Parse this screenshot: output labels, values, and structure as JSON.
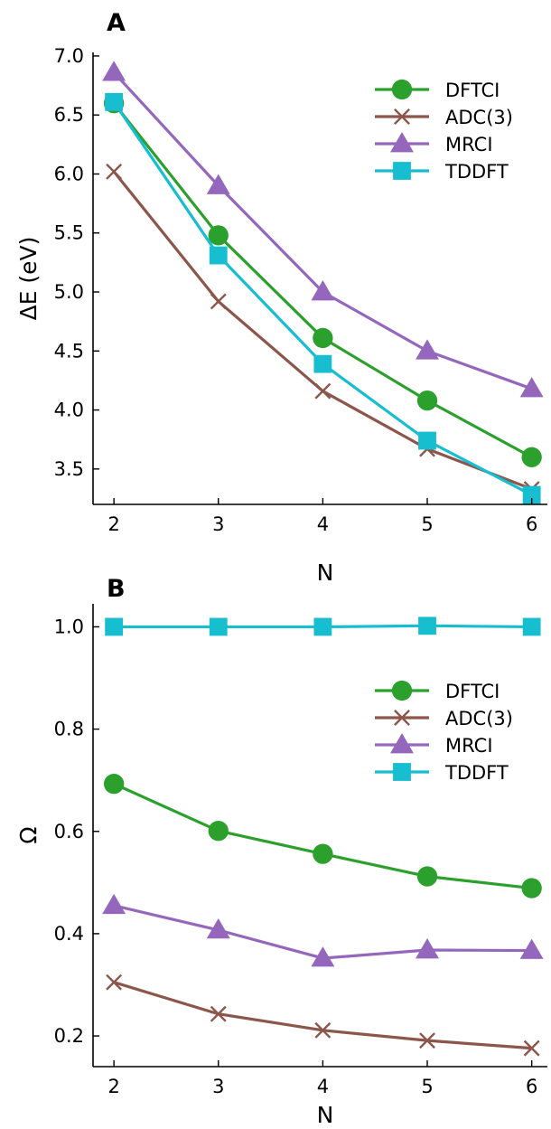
{
  "chart_data": [
    {
      "type": "line",
      "panel": "A",
      "xlabel": "N",
      "ylabel": "ΔE (eV)",
      "x": [
        2,
        3,
        4,
        5,
        6
      ],
      "xlim": [
        1.8,
        6.15
      ],
      "ylim": [
        3.2,
        7.03
      ],
      "xticks": [
        "2",
        "3",
        "4",
        "5",
        "6"
      ],
      "yticks": [
        "3.5",
        "4.0",
        "4.5",
        "5.0",
        "5.5",
        "6.0",
        "6.5",
        "7.0"
      ],
      "legend": "top-right",
      "grid": false,
      "series": [
        {
          "name": "DFTCI",
          "color": "#2ca02c",
          "marker": "circle",
          "values": [
            6.6,
            5.48,
            4.61,
            4.08,
            3.6
          ]
        },
        {
          "name": "ADC(3)",
          "color": "#8c564b",
          "marker": "x",
          "values": [
            6.02,
            4.92,
            4.16,
            3.67,
            3.33
          ]
        },
        {
          "name": "MRCI",
          "color": "#9467bd",
          "marker": "triangle",
          "values": [
            6.86,
            5.9,
            5.0,
            4.5,
            4.18
          ]
        },
        {
          "name": "TDDFT",
          "color": "#17becf",
          "marker": "square",
          "values": [
            6.61,
            5.31,
            4.39,
            3.74,
            3.28
          ]
        }
      ]
    },
    {
      "type": "line",
      "panel": "B",
      "xlabel": "N",
      "ylabel": "Ω",
      "x": [
        2,
        3,
        4,
        5,
        6
      ],
      "xlim": [
        1.8,
        6.15
      ],
      "ylim": [
        0.14,
        1.045
      ],
      "xticks": [
        "2",
        "3",
        "4",
        "5",
        "6"
      ],
      "yticks": [
        "0.2",
        "0.4",
        "0.6",
        "0.8",
        "1.0"
      ],
      "legend": "right",
      "grid": false,
      "series": [
        {
          "name": "DFTCI",
          "color": "#2ca02c",
          "marker": "circle",
          "values": [
            0.693,
            0.601,
            0.556,
            0.512,
            0.489
          ]
        },
        {
          "name": "ADC(3)",
          "color": "#8c564b",
          "marker": "x",
          "values": [
            0.305,
            0.243,
            0.211,
            0.191,
            0.176
          ]
        },
        {
          "name": "MRCI",
          "color": "#9467bd",
          "marker": "triangle",
          "values": [
            0.455,
            0.407,
            0.352,
            0.368,
            0.367
          ]
        },
        {
          "name": "TDDFT",
          "color": "#17becf",
          "marker": "square",
          "values": [
            1.0,
            1.0,
            1.0,
            1.002,
            1.0
          ]
        }
      ]
    }
  ]
}
